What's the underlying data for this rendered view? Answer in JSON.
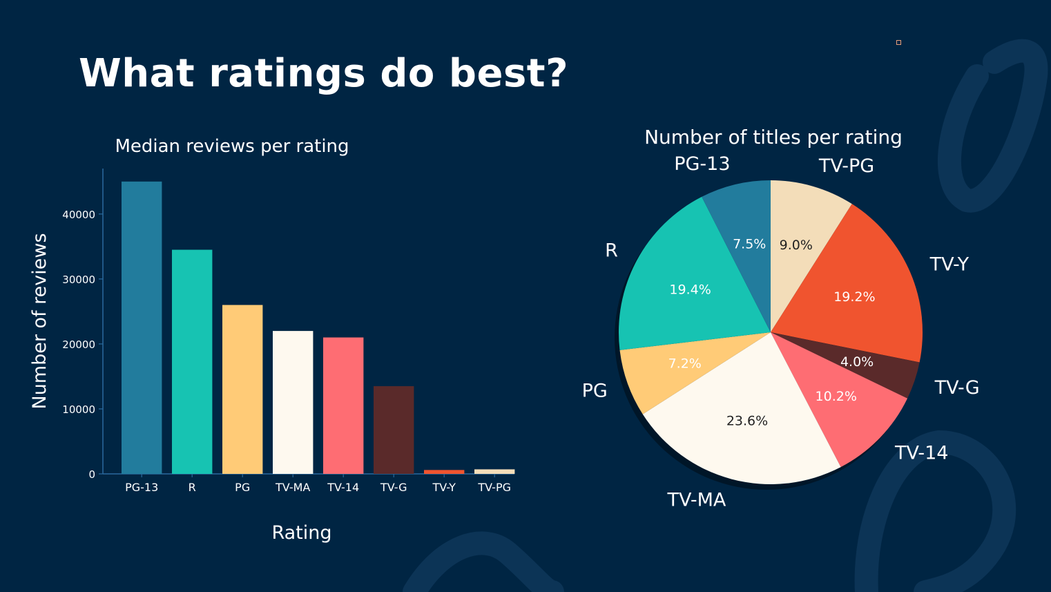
{
  "slide": {
    "title": "What ratings do best?"
  },
  "colors": {
    "background": "#002543",
    "axis": "#2b6a9e",
    "text": "#ffffff",
    "PG-13": "#227c9d",
    "R": "#17c3b2",
    "PG": "#ffcb77",
    "TV-MA": "#fef9ef",
    "TV-14": "#fe6d73",
    "TV-G": "#5a2a2a",
    "TV-Y": "#f0542f",
    "TV-PG": "#f3ddb9"
  },
  "chart_data": [
    {
      "type": "bar",
      "title": "Median reviews per rating",
      "xlabel": "Rating",
      "ylabel": "Number of reviews",
      "categories": [
        "PG-13",
        "R",
        "PG",
        "TV-MA",
        "TV-14",
        "TV-G",
        "TV-Y",
        "TV-PG"
      ],
      "values": [
        45000,
        34500,
        26000,
        22000,
        21000,
        13500,
        600,
        700
      ],
      "yticks": [
        0,
        10000,
        20000,
        30000,
        40000
      ],
      "ylim": [
        0,
        47000
      ],
      "grid": false
    },
    {
      "type": "pie",
      "title": "Number of titles per rating",
      "labels": [
        "TV-PG",
        "TV-Y",
        "TV-G",
        "TV-14",
        "TV-MA",
        "PG",
        "R",
        "PG-13"
      ],
      "values": [
        9.0,
        19.2,
        4.0,
        10.2,
        23.6,
        7.2,
        19.4,
        7.5
      ],
      "value_labels": [
        "9.0%",
        "19.2%",
        "4.0%",
        "10.2%",
        "23.6%",
        "7.2%",
        "19.4%",
        "7.5%"
      ],
      "start": "12 o'clock",
      "direction": "clockwise"
    }
  ]
}
